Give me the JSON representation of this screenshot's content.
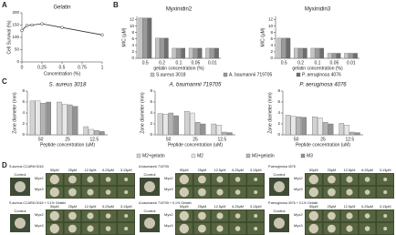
{
  "figure": {
    "panel_labels": [
      "A",
      "B",
      "C",
      "D"
    ]
  },
  "chart_data": [
    {
      "type": "line",
      "title": "Gelatin",
      "x_label": "Concentration (%)",
      "y_label": "Cell Survival (%)",
      "x": [
        0,
        0.0625,
        0.125,
        0.25,
        0.5,
        1
      ],
      "values": [
        128,
        148,
        150,
        155,
        140,
        110
      ],
      "color": "#333333",
      "xlim": [
        0,
        1
      ],
      "xticks": [
        0,
        0.25,
        0.5,
        0.75,
        1
      ],
      "ylim": [
        0,
        200
      ],
      "yticks": [
        0,
        50,
        100,
        150,
        200
      ]
    },
    {
      "type": "bar",
      "title": "Myxinidin2",
      "x_label": "gelatin concentration (%)",
      "y_label": "MIC (μM)",
      "categories": [
        "0.5",
        "0.2",
        "0.1",
        "0.05",
        "0.01"
      ],
      "series": [
        {
          "name": "S.aureus 3018",
          "color": "#c4c4c4",
          "values": [
            12.5,
            6.25,
            3.13,
            3.13,
            3.13
          ]
        },
        {
          "name": "A. baumannii 719705",
          "color": "#9a9a9a",
          "values": [
            12.5,
            6.25,
            3.13,
            3.13,
            3.13
          ]
        },
        {
          "name": "P. aeruginosa 4076",
          "color": "#6e6e6e",
          "values": [
            12.5,
            6.25,
            3.13,
            3.13,
            3.13
          ]
        }
      ],
      "ylim": [
        0,
        13
      ],
      "yticks": [
        0,
        2,
        4,
        6,
        8,
        10,
        12
      ]
    },
    {
      "type": "bar",
      "title": "Myxinidin3",
      "x_label": "gelatin concentration (%)",
      "y_label": "MIC (μM)",
      "categories": [
        "0.5",
        "0.2",
        "0.1",
        "0.05",
        "0.01"
      ],
      "series": [
        {
          "color": "#c4c4c4",
          "values": [
            6.25,
            3.13,
            3.13,
            1.56,
            1.56
          ]
        },
        {
          "color": "#9a9a9a",
          "values": [
            6.25,
            3.13,
            3.13,
            1.56,
            1.56
          ]
        },
        {
          "color": "#6e6e6e",
          "values": [
            6.25,
            3.13,
            3.13,
            1.56,
            1.56
          ]
        }
      ],
      "ylim": [
        0,
        13
      ],
      "yticks": [
        0,
        2,
        4,
        6,
        8,
        10,
        12
      ]
    },
    {
      "type": "bar",
      "title": "S. aureus 3018",
      "x_label": "Peptide concentration (uM)",
      "y_label": "Zone diameter (mm)",
      "categories": [
        "50",
        "25",
        "12.5"
      ],
      "series": [
        {
          "name": "M2+gelatin",
          "color": "#d2d2d2",
          "values": [
            6.2,
            6.0,
            1.5
          ]
        },
        {
          "name": "M2",
          "color": "#e8e8e8",
          "values": [
            6.2,
            5.6,
            1.0
          ]
        },
        {
          "name": "M3+gelatin",
          "color": "#b4b4b4",
          "values": [
            5.8,
            5.5,
            0.8
          ]
        },
        {
          "name": "M3",
          "color": "#939393",
          "values": [
            6.0,
            5.2,
            0.6
          ]
        }
      ],
      "ylim": [
        0,
        8
      ],
      "yticks": [
        0,
        2,
        4,
        6,
        8
      ]
    },
    {
      "type": "bar",
      "title": "A. baumannii 719705",
      "x_label": "Peptide concentration (uM)",
      "y_label": "Zone diameter (mm)",
      "categories": [
        "50",
        "25",
        "12.5"
      ],
      "series": [
        {
          "color": "#d2d2d2",
          "values": [
            3.9,
            4.3,
            2.0
          ]
        },
        {
          "color": "#e8e8e8",
          "values": [
            3.8,
            4.0,
            1.8
          ]
        },
        {
          "color": "#b4b4b4",
          "values": [
            4.0,
            2.3,
            0.5
          ]
        },
        {
          "color": "#939393",
          "values": [
            3.5,
            2.0,
            0.4
          ]
        }
      ],
      "ylim": [
        0,
        8
      ],
      "yticks": [
        0,
        2,
        4,
        6,
        8
      ]
    },
    {
      "type": "bar",
      "title": "P. aeruginosa 4076",
      "x_label": "Peptide concentration (uM)",
      "y_label": "Zone diameter (mm)",
      "categories": [
        "50",
        "25",
        "12.5"
      ],
      "series": [
        {
          "color": "#d2d2d2",
          "values": [
            3.6,
            3.3,
            2.1
          ]
        },
        {
          "color": "#e8e8e8",
          "values": [
            3.4,
            3.1,
            1.8
          ]
        },
        {
          "color": "#b4b4b4",
          "values": [
            3.3,
            2.3,
            0.5
          ]
        },
        {
          "color": "#939393",
          "values": [
            3.2,
            2.0,
            0.4
          ]
        }
      ],
      "ylim": [
        0,
        8
      ],
      "yticks": [
        0,
        2,
        4,
        6,
        8
      ]
    }
  ],
  "panel_d": {
    "groups": [
      "S.aureus CCARM 3018",
      "A.baumannii 719705",
      "P.aeruginosa 4076",
      "S.aureus CCARM 3018 + 0.1% Gelatin",
      "A.baumannii 719705 + 0.1% Gelatin",
      "P.aeruginosa 4076 + 0.1% Gelatin"
    ],
    "concentrations": [
      "50μM",
      "25μM",
      "12.5μM",
      "6.25μM",
      "3.13μM"
    ],
    "control": "Control",
    "rows": [
      "Myx2",
      "Myx3"
    ]
  }
}
